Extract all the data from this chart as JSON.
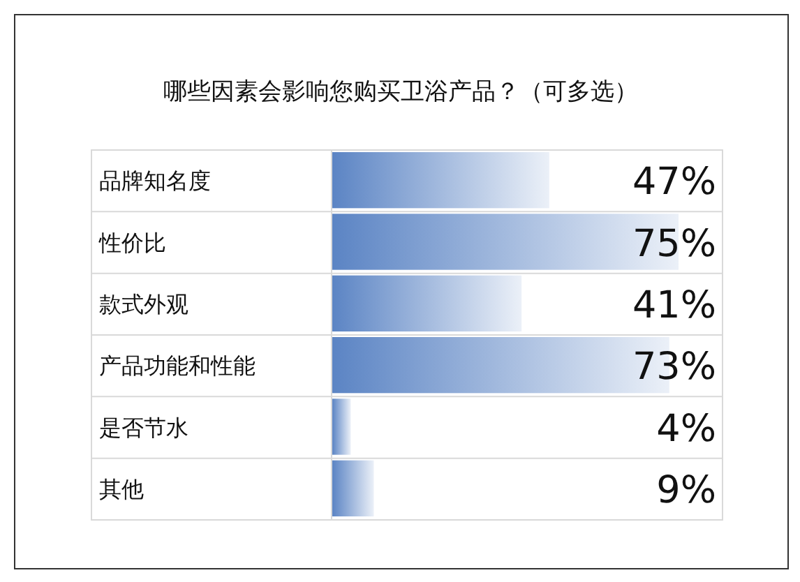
{
  "chart_data": {
    "type": "bar",
    "orientation": "horizontal",
    "title": "哪些因素会影响您购买卫浴产品？（可多选）",
    "categories": [
      "品牌知名度",
      "性价比",
      "款式外观",
      "产品功能和性能",
      "是否节水",
      "其他"
    ],
    "values": [
      47,
      75,
      41,
      73,
      4,
      9
    ],
    "color": "#5b84c4",
    "value_labels": [
      "47%",
      "75%",
      "41%",
      "73%",
      "4%",
      "9%"
    ]
  }
}
